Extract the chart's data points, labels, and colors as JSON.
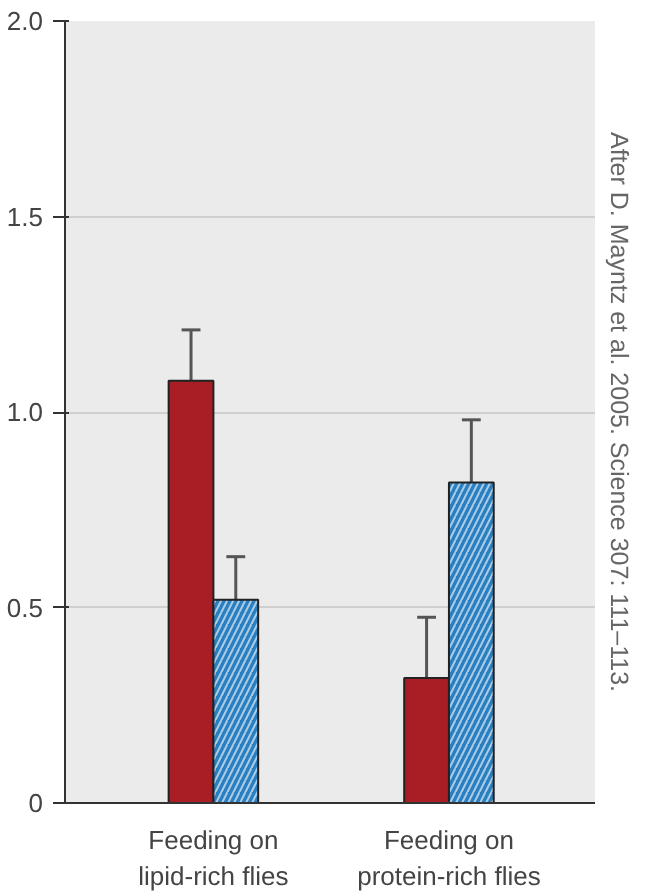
{
  "chart_data": {
    "type": "bar",
    "categories": [
      "Feeding on\nlipid-rich flies",
      "Feeding on\nprotein-rich flies"
    ],
    "series": [
      {
        "color": "#a91e24",
        "values": [
          1.08,
          0.32
        ],
        "errors": [
          [
            1.08,
            1.21
          ],
          [
            0.32,
            0.475
          ]
        ]
      },
      {
        "color": "#2a7fc1",
        "values": [
          0.52,
          0.82
        ],
        "errors": [
          [
            0.52,
            0.63
          ],
          [
            0.82,
            0.98
          ]
        ]
      }
    ],
    "ylim": [
      0,
      2
    ],
    "yticks": [
      0,
      0.5,
      {
        "value": 1,
        "label": "1.0"
      },
      1.5,
      {
        "value": 2,
        "label": "2.0"
      }
    ],
    "grid": "y",
    "annotations": [
      "After D. Mayntz et al. 2005. Science 307: 111–113."
    ]
  }
}
